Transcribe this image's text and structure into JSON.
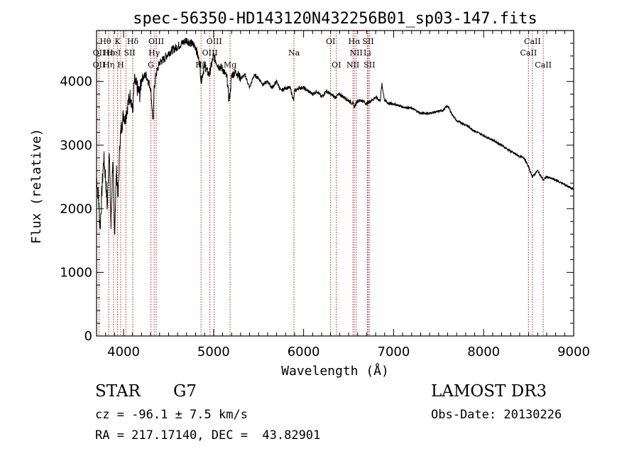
{
  "chart_data": {
    "type": "line",
    "title": "spec-56350-HD143120N432256B01_sp03-147.fits",
    "xlabel": "Wavelength (Å)",
    "ylabel": "Flux (relative)",
    "xlim": [
      3700,
      9000
    ],
    "ylim": [
      0,
      4800
    ],
    "xticks": [
      4000,
      5000,
      6000,
      7000,
      8000,
      9000
    ],
    "yticks": [
      0,
      1000,
      2000,
      3000,
      4000
    ],
    "grid": false,
    "series": [
      {
        "x": [
          3700,
          3720,
          3740,
          3760,
          3780,
          3800,
          3820,
          3840,
          3860,
          3880,
          3900,
          3920,
          3940,
          3960,
          3980,
          4000,
          4020,
          4040,
          4060,
          4080,
          4100,
          4120,
          4150,
          4180,
          4200,
          4250,
          4300,
          4330,
          4340,
          4360,
          4400,
          4450,
          4500,
          4550,
          4600,
          4650,
          4700,
          4750,
          4800,
          4850,
          4860,
          4900,
          4950,
          5000,
          5050,
          5100,
          5150,
          5170,
          5183,
          5200,
          5250,
          5300,
          5350,
          5400,
          5450,
          5500,
          5550,
          5600,
          5650,
          5700,
          5750,
          5800,
          5850,
          5890,
          5900,
          5950,
          6000,
          6050,
          6100,
          6150,
          6200,
          6250,
          6300,
          6350,
          6400,
          6450,
          6500,
          6550,
          6563,
          6600,
          6650,
          6700,
          6750,
          6800,
          6850,
          6870,
          6900,
          6950,
          7000,
          7100,
          7200,
          7300,
          7400,
          7500,
          7550,
          7600,
          7650,
          7700,
          7800,
          7900,
          8000,
          8100,
          8200,
          8300,
          8400,
          8450,
          8500,
          8542,
          8600,
          8662,
          8700,
          8800,
          8900,
          9000
        ],
        "values": [
          2500,
          2200,
          1700,
          2300,
          2800,
          2500,
          2000,
          3000,
          1700,
          2800,
          1600,
          2600,
          2200,
          3100,
          3300,
          3500,
          3400,
          3600,
          3700,
          3800,
          3500,
          4000,
          3900,
          3800,
          4050,
          4100,
          3900,
          3350,
          3900,
          4100,
          4300,
          4350,
          4450,
          4500,
          4550,
          4600,
          4650,
          4600,
          4550,
          4250,
          4000,
          4250,
          4100,
          4400,
          4250,
          4200,
          4050,
          3700,
          3800,
          4100,
          4150,
          4050,
          4100,
          3900,
          4100,
          4050,
          3950,
          4000,
          3900,
          4000,
          3850,
          3900,
          3900,
          3700,
          3850,
          3900,
          3900,
          3850,
          3800,
          3850,
          3750,
          3850,
          3800,
          3750,
          3800,
          3750,
          3700,
          3650,
          3600,
          3700,
          3700,
          3650,
          3700,
          3750,
          3700,
          3950,
          3700,
          3650,
          3650,
          3600,
          3580,
          3500,
          3500,
          3530,
          3550,
          3620,
          3480,
          3380,
          3320,
          3220,
          3150,
          3080,
          3000,
          2900,
          2820,
          2800,
          2650,
          2500,
          2600,
          2450,
          2500,
          2450,
          2380,
          2300
        ]
      }
    ],
    "line_marks": [
      3727,
      3835,
      3889,
      3933,
      3968,
      4026,
      4102,
      4304,
      4340,
      4363,
      4861,
      4959,
      5007,
      5183,
      5893,
      6300,
      6364,
      6548,
      6563,
      6584,
      6708,
      6717,
      6731,
      8498,
      8542,
      8662
    ],
    "line_labels": [
      {
        "text": "Hθ",
        "x": 3798,
        "row": 1
      },
      {
        "text": "OII",
        "x": 3727,
        "row": 2
      },
      {
        "text": "OII",
        "x": 3727,
        "row": 3
      },
      {
        "text": "Hε",
        "x": 3835,
        "row": 2
      },
      {
        "text": "K",
        "x": 3933,
        "row": 1
      },
      {
        "text": "HeI",
        "x": 3889,
        "row": 2
      },
      {
        "text": "Hη",
        "x": 3835,
        "row": 3
      },
      {
        "text": "Hδ",
        "x": 4102,
        "row": 1
      },
      {
        "text": "SII",
        "x": 4068,
        "row": 2
      },
      {
        "text": "H",
        "x": 3968,
        "row": 3
      },
      {
        "text": "OIII",
        "x": 4363,
        "row": 1
      },
      {
        "text": "Hγ",
        "x": 4340,
        "row": 2
      },
      {
        "text": "G",
        "x": 4304,
        "row": 3
      },
      {
        "text": "OIII",
        "x": 5007,
        "row": 1
      },
      {
        "text": "OIII",
        "x": 4959,
        "row": 2
      },
      {
        "text": "Hβ",
        "x": 4861,
        "row": 3
      },
      {
        "text": "Mg",
        "x": 5183,
        "row": 3
      },
      {
        "text": "Na",
        "x": 5893,
        "row": 2
      },
      {
        "text": "OI",
        "x": 6300,
        "row": 1
      },
      {
        "text": "OI",
        "x": 6364,
        "row": 3
      },
      {
        "text": "Hα",
        "x": 6563,
        "row": 1
      },
      {
        "text": "SII",
        "x": 6717,
        "row": 1
      },
      {
        "text": "NII",
        "x": 6584,
        "row": 2
      },
      {
        "text": "Li",
        "x": 6708,
        "row": 2
      },
      {
        "text": "NII",
        "x": 6548,
        "row": 3
      },
      {
        "text": "SII",
        "x": 6731,
        "row": 3
      },
      {
        "text": "CaII",
        "x": 8542,
        "row": 1
      },
      {
        "text": "CaII",
        "x": 8498,
        "row": 2
      },
      {
        "text": "CaII",
        "x": 8662,
        "row": 3
      }
    ],
    "colors": {
      "spectrum": "#000000",
      "line_marks": "#b22222",
      "axes": "#000000"
    }
  },
  "info": {
    "object_class": "STAR",
    "subclass": "G7",
    "survey": "LAMOST DR3",
    "redshift": "cz = -96.1 ± 7.5 km/s",
    "obs_date": "Obs-Date: 20130226",
    "coords": "RA = 217.17140, DEC =  43.82901"
  }
}
